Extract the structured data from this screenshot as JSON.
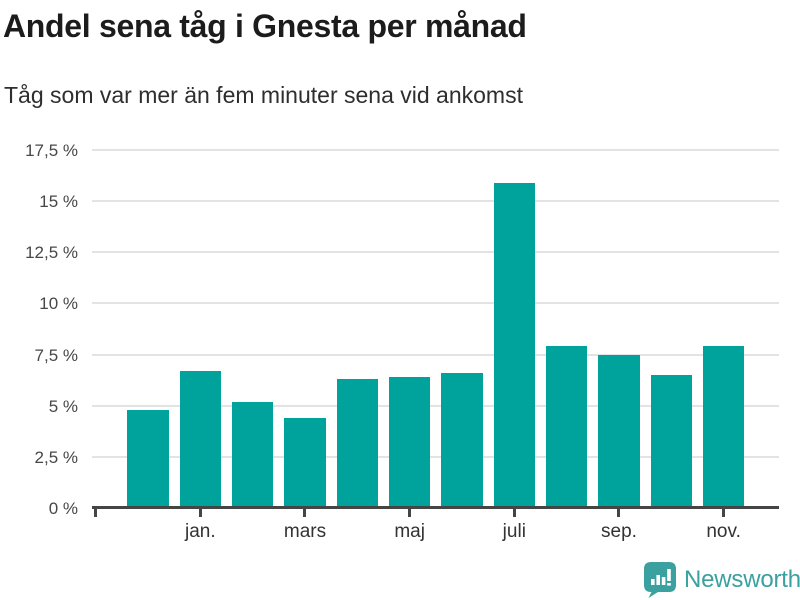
{
  "header": {
    "title": "Andel sena tåg i Gnesta per månad",
    "subtitle": "Tåg som var mer än fem minuter sena vid ankomst"
  },
  "chart_data": {
    "type": "bar",
    "title": "Andel sena tåg i Gnesta per månad",
    "subtitle": "Tåg som var mer än fem minuter sena vid ankomst",
    "unit": "%",
    "values": [
      4.8,
      6.7,
      5.2,
      4.4,
      6.3,
      6.4,
      6.6,
      15.9,
      7.9,
      7.5,
      6.5,
      7.9
    ],
    "x_tick_labels": [
      "jan.",
      "mars",
      "maj",
      "juli",
      "sep.",
      "nov."
    ],
    "x_tick_bar_indices": [
      1,
      3,
      5,
      7,
      9,
      11
    ],
    "y_ticks": [
      {
        "label": "0 %",
        "value": 0
      },
      {
        "label": "2,5 %",
        "value": 2.5
      },
      {
        "label": "5 %",
        "value": 5
      },
      {
        "label": "7,5 %",
        "value": 7.5
      },
      {
        "label": "10 %",
        "value": 10
      },
      {
        "label": "12,5 %",
        "value": 12.5
      },
      {
        "label": "15 %",
        "value": 15
      },
      {
        "label": "17,5 %",
        "value": 17.5
      }
    ],
    "ylim": [
      0,
      17.5
    ],
    "grid": true,
    "legend": "none",
    "bar_color": "#00a39b",
    "axis_color": "#454545",
    "grid_color": "#e3e3e3"
  },
  "footer": {
    "brand": "Newsworthy",
    "brand_color": "#3aa0a0",
    "logo_icon": "bar-chart-speech-bubble"
  }
}
